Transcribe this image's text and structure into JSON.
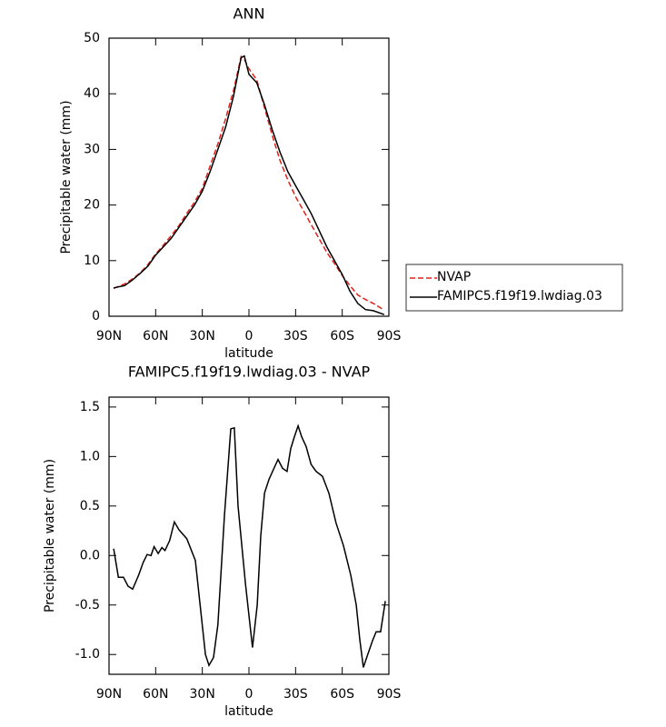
{
  "chart_data": [
    {
      "type": "line",
      "title": "ANN",
      "xlabel": "latitude",
      "ylabel": "Precipitable water (mm)",
      "x": [
        87,
        80,
        75,
        70,
        65,
        60,
        55,
        50,
        45,
        40,
        35,
        30,
        25,
        20,
        15,
        10,
        5,
        3,
        0,
        -5,
        -10,
        -15,
        -20,
        -25,
        -30,
        -35,
        -40,
        -45,
        -50,
        -55,
        -60,
        -65,
        -70,
        -75,
        -80,
        -87
      ],
      "series": [
        {
          "name": "NVAP",
          "color": "#e0201b",
          "dash": true,
          "values": [
            5.0,
            5.8,
            6.7,
            7.8,
            9.3,
            11.2,
            12.8,
            14.5,
            16.3,
            18.5,
            20.5,
            23,
            27,
            31,
            35.5,
            40.5,
            46.7,
            46.2,
            44.5,
            42.5,
            37.5,
            32.5,
            28,
            24.5,
            21.5,
            19,
            16.5,
            14,
            11.5,
            9.5,
            7.3,
            5.5,
            3.8,
            3.0,
            2.3,
            1.1
          ]
        },
        {
          "name": "FAMIPC5.f19f19.lwdiag.03",
          "color": "#000000",
          "dash": false,
          "values": [
            5.1,
            5.5,
            6.5,
            7.7,
            9.0,
            11,
            12.5,
            14,
            16,
            18,
            20,
            22.5,
            26,
            30,
            34,
            39.5,
            46.5,
            46.8,
            43.5,
            42,
            38,
            33.5,
            29.5,
            26,
            23.5,
            21,
            18.5,
            15.5,
            12.5,
            10,
            7.5,
            4.5,
            2.3,
            1.2,
            1.0,
            0.3
          ]
        }
      ],
      "xlim": [
        90,
        -90
      ],
      "xticks": [
        {
          "value": 90,
          "label": "90N"
        },
        {
          "value": 60,
          "label": "60N"
        },
        {
          "value": 30,
          "label": "30N"
        },
        0,
        {
          "value": -30,
          "label": "30S"
        },
        {
          "value": -60,
          "label": "60S"
        },
        {
          "value": -90,
          "label": "90S"
        }
      ],
      "ylim": [
        0,
        50
      ],
      "yticks": [
        0,
        10,
        20,
        30,
        40,
        50
      ]
    },
    {
      "type": "line",
      "title": "FAMIPC5.f19f19.lwdiag.03 - NVAP",
      "xlabel": "latitude",
      "ylabel": "Precipitable water (mm)",
      "x": [
        87,
        84,
        80.7,
        77.7,
        74.8,
        71,
        68,
        65.5,
        63,
        61,
        58.4,
        56,
        54,
        51,
        48,
        45,
        40,
        34.5,
        28,
        25.7,
        22.8,
        20,
        15.8,
        11.7,
        9.4,
        7,
        2.3,
        -2.3,
        -5.3,
        -7.6,
        -10,
        -12.9,
        -15.8,
        -18.7,
        -21.6,
        -24.5,
        -26.9,
        -29.2,
        -31.6,
        -33.9,
        -36.8,
        -40,
        -43.2,
        -47.3,
        -51.4,
        -56,
        -60.8,
        -65.5,
        -69,
        -71.3,
        -73.6,
        -76,
        -79.5,
        -81.8,
        -84.7,
        -87.7
      ],
      "color": "#000000",
      "values": [
        0.07,
        -0.22,
        -0.22,
        -0.31,
        -0.34,
        -0.2,
        -0.07,
        0.01,
        0.0,
        0.09,
        0.02,
        0.08,
        0.05,
        0.15,
        0.34,
        0.26,
        0.17,
        -0.05,
        -1.0,
        -1.11,
        -1.03,
        -0.7,
        0.4,
        1.28,
        1.29,
        0.5,
        -0.28,
        -0.93,
        -0.5,
        0.2,
        0.63,
        0.77,
        0.87,
        0.97,
        0.88,
        0.85,
        1.08,
        1.2,
        1.31,
        1.2,
        1.1,
        0.92,
        0.85,
        0.8,
        0.63,
        0.33,
        0.1,
        -0.2,
        -0.5,
        -0.85,
        -1.13,
        -1.02,
        -0.86,
        -0.77,
        -0.77,
        -0.46
      ],
      "xlim": [
        90,
        -90
      ],
      "xticks": [
        {
          "value": 90,
          "label": "90N"
        },
        {
          "value": 60,
          "label": "60N"
        },
        {
          "value": 30,
          "label": "30N"
        },
        0,
        {
          "value": -30,
          "label": "30S"
        },
        {
          "value": -60,
          "label": "60S"
        },
        {
          "value": -90,
          "label": "90S"
        }
      ],
      "ylim": [
        -1.2,
        1.6
      ],
      "yticks": [
        {
          "value": -1.0,
          "label": "-1.0"
        },
        -0.5,
        {
          "value": 0.0,
          "label": "0.0"
        },
        0.5,
        {
          "value": 1.0,
          "label": "1.0"
        },
        1.5
      ]
    }
  ]
}
